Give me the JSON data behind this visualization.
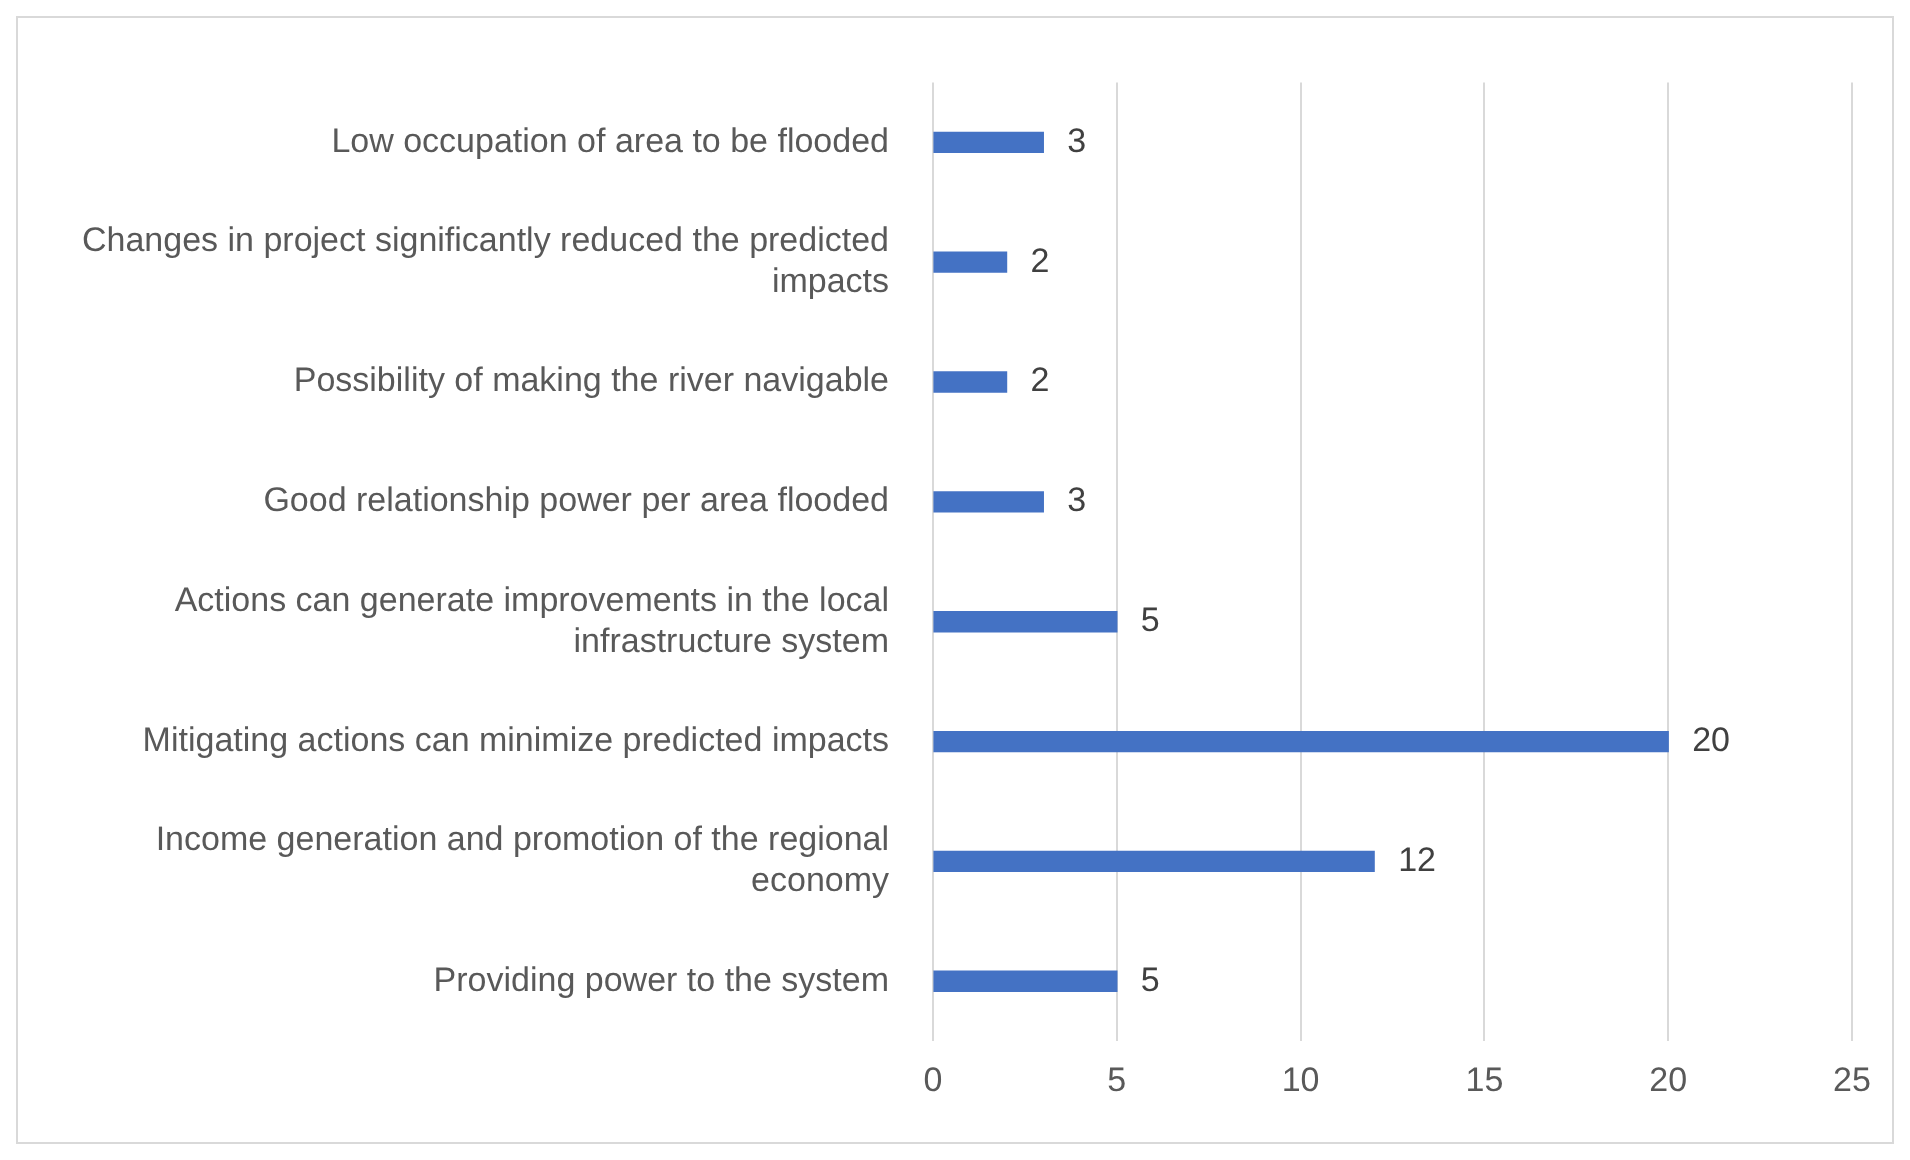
{
  "chart_data": {
    "type": "bar",
    "orientation": "horizontal",
    "categories": [
      "Low occupation of area to be flooded",
      "Changes in project significantly reduced the predicted impacts",
      "Possibility of making the river navigable",
      "Good relationship power per area flooded",
      "Actions can generate improvements in the local infrastructure system",
      "Mitigating actions can minimize predicted impacts",
      "Income generation and promotion of the regional economy",
      "Providing power to the system"
    ],
    "values": [
      3,
      2,
      2,
      3,
      5,
      20,
      12,
      5
    ],
    "color": "#4472c4",
    "xlim": [
      0,
      25
    ],
    "xticks": [
      0,
      5,
      10,
      15,
      20,
      25
    ],
    "grid": "x",
    "legend": false,
    "data_labels": true
  }
}
